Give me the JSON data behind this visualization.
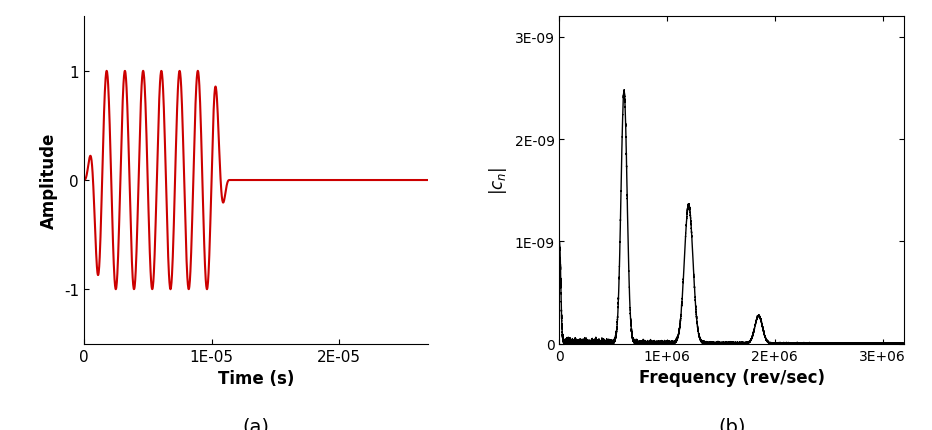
{
  "panel_a": {
    "xlabel": "Time (s)",
    "ylabel": "Amplitude",
    "xlim": [
      0,
      2.7e-05
    ],
    "ylim": [
      -1.5,
      1.5
    ],
    "xticks": [
      0,
      1e-05,
      2e-05
    ],
    "xticklabels": [
      "0",
      "1E-05",
      "2E-05"
    ],
    "yticks": [
      -1,
      0,
      1
    ],
    "color": "#cc0000",
    "linewidth": 1.5,
    "f0": 700000,
    "n_cycles": 8,
    "sample_rate": 50000000,
    "label": "(a)"
  },
  "panel_b": {
    "xlabel": "Frequency (rev/sec)",
    "ylabel": "$|c_n|$",
    "xlim": [
      0,
      3200000.0
    ],
    "ylim": [
      0,
      3.2e-09
    ],
    "xticks": [
      0,
      1000000.0,
      2000000.0,
      3000000.0
    ],
    "xticklabels": [
      "0",
      "1E+06",
      "2E+06",
      "3E+06"
    ],
    "yticks": [
      0,
      1e-09,
      2e-09,
      3e-09
    ],
    "yticklabels": [
      "0",
      "1E-09",
      "2E-09",
      "3E-09"
    ],
    "color": "#000000",
    "linewidth": 1.0,
    "peak1_freq": 600000,
    "peak1_amp": 2.45e-09,
    "peak1_sigma": 28000,
    "peak2_freq": 1200000,
    "peak2_amp": 1.35e-09,
    "peak2_sigma": 40000,
    "peak3_freq": 1850000,
    "peak3_amp": 2.7e-10,
    "peak3_sigma": 35000,
    "dc_spike_amp": 1e-09,
    "label": "(b)"
  },
  "background_color": "#ffffff",
  "font_size": 12,
  "label_fontsize": 14
}
